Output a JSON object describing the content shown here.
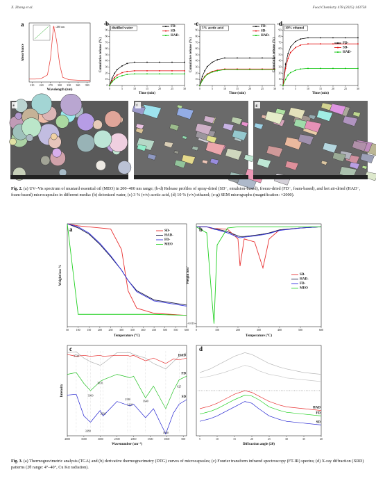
{
  "header": {
    "left": "X. Zhong et al.",
    "right": "Food Chemistry 478 (2025) 143758"
  },
  "figure2": {
    "panels": [
      {
        "label": "a",
        "xlabel": "Wavelength (nm)",
        "ylabel": "Absorbance",
        "peak": {
          "text": "280 nm",
          "x": 280
        },
        "x": [
          200,
          220,
          240,
          260,
          270,
          280,
          290,
          300,
          310,
          330,
          360,
          400
        ],
        "xlim": [
          200,
          400
        ],
        "xticks": [
          210,
          240,
          270,
          300,
          330,
          360,
          390
        ],
        "ylim": [
          0,
          100
        ],
        "series": [
          {
            "color": "#e8413c",
            "values": [
              5,
              5,
              6,
              12,
              40,
              95,
              70,
              30,
              8,
              4,
              3,
              3
            ]
          }
        ]
      },
      {
        "label": "b",
        "title": "distilled water",
        "xlabel": "Time (min)",
        "ylabel": "Cumulative release (%)",
        "x": [
          0,
          1,
          2,
          3,
          5,
          7,
          10,
          15,
          20,
          25,
          30
        ],
        "xlim": [
          0,
          30
        ],
        "xticks": [
          0,
          5,
          10,
          15,
          20,
          25,
          30
        ],
        "ylim": [
          0,
          100
        ],
        "yticks": [
          0,
          10,
          20,
          30,
          40,
          50,
          60,
          70,
          80,
          90,
          100
        ],
        "series": [
          {
            "name": "FD-",
            "color": "#000000",
            "values": [
              0,
              12,
              20,
              26,
              32,
              36,
              38,
              38,
              38,
              38,
              38
            ]
          },
          {
            "name": "SD-",
            "color": "#e00000",
            "values": [
              0,
              8,
              13,
              17,
              21,
              23,
              24,
              24,
              24,
              24,
              24
            ]
          },
          {
            "name": "HAD-",
            "color": "#00c000",
            "values": [
              0,
              6,
              10,
              13,
              16,
              18,
              19,
              19,
              19,
              19,
              19
            ]
          }
        ]
      },
      {
        "label": "c",
        "title": "3% acetic acid",
        "xlabel": "Time (min)",
        "ylabel": "Cumulative release (%)",
        "x": [
          0,
          1,
          2,
          3,
          5,
          7,
          10,
          15,
          20,
          25,
          30
        ],
        "xlim": [
          0,
          30
        ],
        "xticks": [
          0,
          5,
          10,
          15,
          20,
          25,
          30
        ],
        "ylim": [
          0,
          100
        ],
        "yticks": [
          0,
          10,
          20,
          30,
          40,
          50,
          60,
          70,
          80,
          90,
          100
        ],
        "series": [
          {
            "name": "FD-",
            "color": "#000000",
            "values": [
              0,
              15,
              24,
              31,
              38,
              42,
              45,
              45,
              45,
              45,
              45
            ]
          },
          {
            "name": "SD-",
            "color": "#e00000",
            "values": [
              0,
              9,
              15,
              19,
              23,
              25,
              27,
              27,
              27,
              27,
              27
            ]
          },
          {
            "name": "HAD-",
            "color": "#00c000",
            "values": [
              0,
              8,
              14,
              18,
              22,
              24,
              26,
              26,
              26,
              26,
              26
            ]
          }
        ]
      },
      {
        "label": "d",
        "title": "10% ethanol",
        "xlabel": "Time (min)",
        "ylabel": "Cumulative release (%)",
        "x": [
          0,
          1,
          2,
          3,
          5,
          7,
          10,
          15,
          20,
          25,
          30
        ],
        "xlim": [
          0,
          30
        ],
        "xticks": [
          0,
          5,
          10,
          15,
          20,
          25,
          30
        ],
        "ylim": [
          0,
          100
        ],
        "yticks": [
          0,
          10,
          20,
          30,
          40,
          50,
          60,
          70,
          80,
          90,
          100
        ],
        "series": [
          {
            "name": "FD-",
            "color": "#000000",
            "values": [
              0,
              35,
              52,
              63,
              72,
              76,
              78,
              78,
              78,
              78,
              78
            ]
          },
          {
            "name": "SD-",
            "color": "#e00000",
            "values": [
              0,
              28,
              44,
              54,
              62,
              66,
              68,
              68,
              68,
              68,
              68
            ]
          },
          {
            "name": "HAD-",
            "color": "#00c000",
            "values": [
              0,
              10,
              17,
              21,
              25,
              27,
              28,
              28,
              28,
              28,
              28
            ]
          }
        ]
      }
    ],
    "sem": [
      {
        "label": "e"
      },
      {
        "label": "f"
      },
      {
        "label": "g"
      }
    ],
    "caption": {
      "label": "Fig. 2.",
      "text": "(a) UV–Vis spectrum of mustard essential oil (MEO) in 200–400 nm range; (b-d) Release profiles of spray-dried (SD⁻, emulsion-based), freeze-dried (FD⁻, foam-based), and hot air-dried (HAD⁻, foam-based) microcapsules in different media: (b) deionized water, (c) 3 % (v/v) acetic acid, (d) 10 % (v/v) ethanol; (e-g) SEM micrographs (magnification: ×2000)."
    }
  },
  "figure3": {
    "panels": [
      {
        "label": "a",
        "xlabel": "Temperature (°C)",
        "ylabel": "Weight loss %",
        "x": [
          50,
          100,
          150,
          200,
          250,
          300,
          330,
          370,
          450,
          600
        ],
        "xlim": [
          50,
          600
        ],
        "xticks": [
          50,
          100,
          150,
          200,
          250,
          300,
          350,
          400,
          450,
          500,
          550,
          600
        ],
        "ylim": [
          0,
          100
        ],
        "series": [
          {
            "name": "SD-",
            "color": "#e83030",
            "values": [
              100,
              98,
              97,
              96,
              95,
              75,
              35,
              18,
              13,
              11
            ]
          },
          {
            "name": "HAD-",
            "color": "#1a1a40",
            "values": [
              100,
              96,
              90,
              80,
              68,
              55,
              45,
              35,
              26,
              21
            ]
          },
          {
            "name": "FD-",
            "color": "#3030e0",
            "values": [
              100,
              97,
              91,
              81,
              69,
              55,
              45,
              34,
              25,
              20
            ]
          },
          {
            "name": "MEO",
            "color": "#20d020",
            "values": [
              100,
              12,
              12,
              12,
              12,
              12,
              12,
              12,
              12,
              11
            ]
          }
        ]
      },
      {
        "label": "b",
        "xlabel": "Temperature (°C)",
        "ylabel": "Weight loss'",
        "x": [
          0,
          50,
          75,
          85,
          100,
          150,
          200,
          210,
          230,
          280,
          320,
          350,
          400,
          500,
          600
        ],
        "xlim": [
          0,
          600
        ],
        "xticks": [
          0,
          100,
          200,
          300,
          400,
          500,
          600
        ],
        "ylim": [
          -0.0165,
          0.0005
        ],
        "yticks": [
          -0.016
        ],
        "series": [
          {
            "name": "SD-",
            "color": "#e83030",
            "values": [
              0,
              0,
              -0.0003,
              -0.0003,
              -0.0003,
              -0.0004,
              -0.002,
              -0.0065,
              -0.002,
              -0.0025,
              -0.0068,
              -0.002,
              -0.0005,
              -0.0002,
              0
            ]
          },
          {
            "name": "HAD-",
            "color": "#1a1a40",
            "values": [
              0,
              0,
              -0.0002,
              -0.0003,
              -0.0004,
              -0.0008,
              -0.0015,
              -0.0016,
              -0.0016,
              -0.0014,
              -0.0012,
              -0.001,
              -0.0005,
              -0.0002,
              0
            ]
          },
          {
            "name": "FD-",
            "color": "#3030e0",
            "values": [
              0,
              0,
              -0.0002,
              -0.0004,
              -0.0005,
              -0.001,
              -0.0017,
              -0.0018,
              -0.0017,
              -0.0015,
              -0.0013,
              -0.0011,
              -0.0006,
              -0.0002,
              0
            ]
          },
          {
            "name": "MEO",
            "color": "#20d020",
            "values": [
              0,
              -0.001,
              -0.012,
              -0.016,
              -0.003,
              -0.0002,
              0,
              0,
              0,
              0,
              0,
              0,
              0,
              0,
              0
            ]
          }
        ]
      },
      {
        "label": "c",
        "xlabel": "Wavenumber (cm⁻¹)",
        "ylabel": "Intensity",
        "x": [
          4000,
          3730,
          3500,
          3300,
          3010,
          2920,
          2500,
          2180,
          2110,
          2000,
          1640,
          1400,
          1030,
          800,
          625,
          400
        ],
        "xlim": [
          4000,
          400
        ],
        "xticks": [
          4000,
          3500,
          3000,
          2500,
          2000,
          1500,
          1000,
          500
        ],
        "ylim": [
          0,
          100
        ],
        "peaks": [
          3730,
          3010,
          3300,
          2920,
          2180,
          2110,
          1640,
          625,
          3380,
          1030
        ],
        "series": [
          {
            "color": "#b0b0b0",
            "values": [
              92,
              93,
              86,
              82,
              78,
              80,
              92,
              92,
              92,
              90,
              86,
              80,
              74,
              82,
              88,
              92
            ]
          },
          {
            "name": "HAD",
            "color": "#e83030",
            "values": [
              90,
              88,
              89,
              88,
              89,
              88,
              89,
              89,
              88,
              89,
              83,
              86,
              80,
              85,
              84,
              86
            ]
          },
          {
            "name": "FD",
            "color": "#20c020",
            "values": [
              68,
              70,
              58,
              50,
              60,
              62,
              68,
              65,
              64,
              66,
              42,
              55,
              30,
              50,
              62,
              66
            ]
          },
          {
            "name": "SD",
            "color": "#2020d0",
            "values": [
              45,
              46,
              22,
              15,
              28,
              22,
              38,
              34,
              33,
              35,
              20,
              30,
              2,
              25,
              35,
              40
            ]
          }
        ]
      },
      {
        "label": "d",
        "xlabel": "Diffraction angle (2θ)",
        "x": [
          5,
          8,
          10,
          12,
          15,
          18,
          20,
          22,
          25,
          28,
          30,
          35,
          40
        ],
        "xlim": [
          4,
          40
        ],
        "xticks": [
          5,
          10,
          15,
          20,
          25,
          30,
          35,
          40
        ],
        "ylim": [
          0,
          100
        ],
        "series": [
          {
            "color": "#b8b8b8",
            "values": [
              70,
              74,
              78,
              82,
              88,
              92,
              90,
              86,
              80,
              76,
              74,
              70,
              68
            ]
          },
          {
            "color": "#c8c8c8",
            "values": [
              64,
              66,
              68,
              70,
              74,
              78,
              76,
              72,
              68,
              66,
              64,
              62,
              60
            ]
          },
          {
            "name": "HAD",
            "color": "#e83030",
            "values": [
              30,
              33,
              36,
              40,
              46,
              50,
              48,
              44,
              38,
              34,
              32,
              30,
              28
            ]
          },
          {
            "name": "FD",
            "color": "#20d020",
            "values": [
              24,
              27,
              30,
              34,
              40,
              45,
              44,
              40,
              32,
              28,
              26,
              24,
              22
            ]
          },
          {
            "name": "SD",
            "color": "#2020d0",
            "values": [
              16,
              19,
              22,
              26,
              32,
              38,
              36,
              30,
              22,
              18,
              16,
              14,
              12
            ]
          }
        ]
      }
    ],
    "caption": {
      "label": "Fig. 3.",
      "text": "(a) Thermogravimetric analysis (TGA) and (b) derivative thermogravimetry (DTG) curves of microcapsules; (c) Fourier transform infrared spectroscopy (FT-IR) spectra; (d) X-ray diffraction (XRD) patterns (2θ range: 4°–40°, Cu Kα radiation)."
    }
  }
}
